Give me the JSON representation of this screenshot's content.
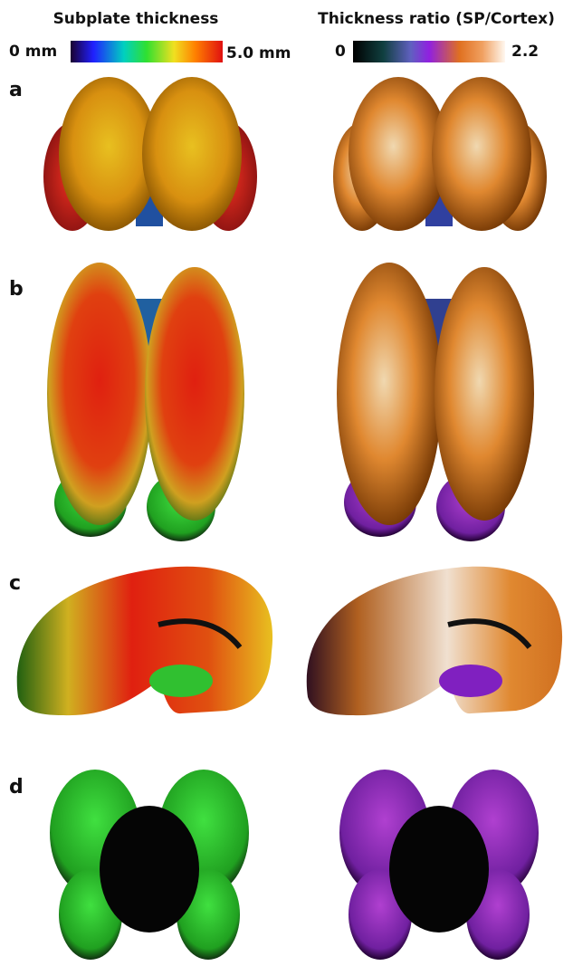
{
  "left_colorbar": {
    "title": "Subplate thickness",
    "min_label": "0 mm",
    "max_label": "5.0 mm"
  },
  "right_colorbar": {
    "title": "Thickness ratio (SP/Cortex)",
    "min_label": "0",
    "max_label": "2.2"
  },
  "panels": [
    {
      "label": "a"
    },
    {
      "label": "b"
    },
    {
      "label": "c"
    },
    {
      "label": "d"
    }
  ]
}
